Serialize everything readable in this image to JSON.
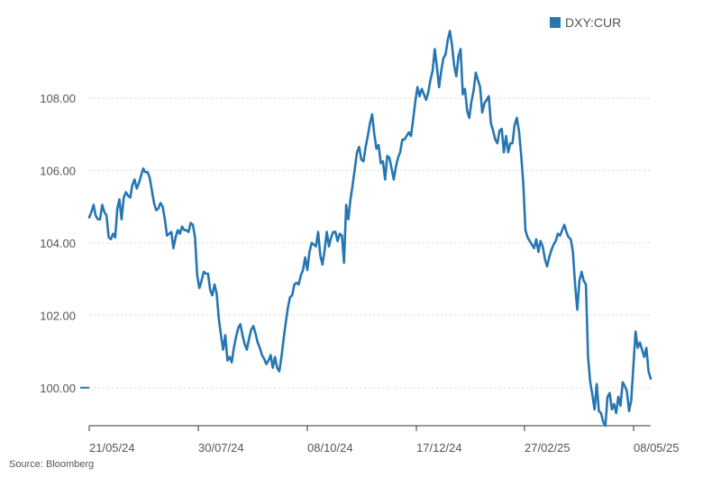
{
  "source": "Source: Bloomberg",
  "chart_data": {
    "type": "line",
    "title": "",
    "xlabel": "",
    "ylabel": "",
    "ylim": [
      98.95,
      109.96
    ],
    "yticks": [
      100,
      102,
      104,
      106,
      108
    ],
    "ytick_labels": [
      "100.00",
      "102.00",
      "104.00",
      "106.00",
      "108.00"
    ],
    "xtick_labels": [
      "21/05/24",
      "30/07/24",
      "08/10/24",
      "17/12/24",
      "27/02/25",
      "08/05/25"
    ],
    "grid": "horizontal dotted",
    "legend_position": "top-right",
    "colors": {
      "line": "#2676b2",
      "grid": "#d7d7d7",
      "axis": "#333333",
      "text": "#555555"
    },
    "series": [
      {
        "name": "DXY:CUR",
        "values": [
          104.7,
          104.85,
          105.05,
          104.75,
          104.65,
          104.65,
          105.05,
          104.85,
          104.75,
          104.15,
          104.1,
          104.25,
          104.15,
          104.95,
          105.2,
          104.65,
          105.25,
          105.4,
          105.3,
          105.25,
          105.6,
          105.75,
          105.5,
          105.65,
          105.85,
          106.05,
          105.95,
          105.95,
          105.8,
          105.45,
          105.1,
          104.9,
          104.95,
          105.1,
          105,
          104.65,
          104.2,
          104.25,
          104.3,
          103.85,
          104.15,
          104.35,
          104.25,
          104.45,
          104.35,
          104.35,
          104.3,
          104.55,
          104.5,
          104.15,
          103.1,
          102.75,
          102.95,
          103.2,
          103.15,
          103.15,
          102.7,
          102.55,
          102.85,
          102.6,
          101.9,
          101.45,
          101.05,
          101.45,
          100.75,
          100.85,
          100.7,
          101.1,
          101.4,
          101.65,
          101.75,
          101.45,
          101.2,
          101.05,
          101.35,
          101.6,
          101.7,
          101.5,
          101.25,
          101.1,
          100.9,
          100.8,
          100.65,
          100.75,
          100.9,
          100.55,
          100.85,
          100.55,
          100.45,
          100.85,
          101.35,
          101.8,
          102.2,
          102.5,
          102.55,
          102.85,
          102.9,
          102.85,
          103.1,
          103.25,
          103.6,
          103.25,
          103.75,
          104,
          103.95,
          103.9,
          104.3,
          103.65,
          103.4,
          103.8,
          104.3,
          103.9,
          104.15,
          104.3,
          104.3,
          104.05,
          104.25,
          104.2,
          103.45,
          105.05,
          104.65,
          105.2,
          105.6,
          106.05,
          106.5,
          106.65,
          106.3,
          106.25,
          106.65,
          106.95,
          107.3,
          107.55,
          107,
          106.6,
          106.7,
          106.2,
          106.25,
          105.75,
          106.4,
          106.35,
          106.05,
          105.75,
          106.1,
          106.35,
          106.5,
          106.85,
          106.85,
          106.95,
          107.05,
          106.95,
          107.4,
          107.9,
          108.3,
          108.05,
          108.25,
          108.1,
          107.95,
          108.15,
          108.5,
          108.75,
          109.35,
          108.85,
          108.3,
          108.75,
          109.1,
          109.2,
          109.6,
          109.85,
          109.45,
          108.9,
          108.6,
          109.15,
          109.35,
          108.1,
          108.25,
          107.65,
          107.45,
          107.9,
          108.2,
          108.7,
          108.5,
          108.3,
          107.6,
          107.85,
          107.95,
          108.05,
          107.3,
          107.1,
          106.85,
          106.75,
          107.1,
          107.15,
          106.5,
          106.95,
          106.5,
          106.75,
          106.75,
          107.25,
          107.45,
          107.1,
          106.45,
          105.65,
          104.35,
          104.15,
          104.05,
          103.95,
          103.85,
          104.1,
          103.75,
          104.05,
          103.9,
          103.55,
          103.35,
          103.6,
          103.8,
          103.95,
          104.05,
          104.25,
          104.2,
          104.35,
          104.5,
          104.3,
          104.15,
          104.1,
          103.75,
          102.85,
          102.15,
          102.95,
          103.2,
          102.95,
          102.85,
          100.85,
          100.15,
          99.8,
          99.4,
          100.1,
          99.35,
          99.3,
          99.05,
          98.95,
          99.75,
          99.85,
          99.4,
          99.55,
          99.3,
          99.75,
          99.5,
          100.15,
          100.05,
          99.9,
          99.35,
          99.65,
          100.6,
          101.55,
          101.1,
          101.25,
          101.05,
          100.85,
          101.1,
          100.45,
          100.25
        ]
      }
    ]
  }
}
